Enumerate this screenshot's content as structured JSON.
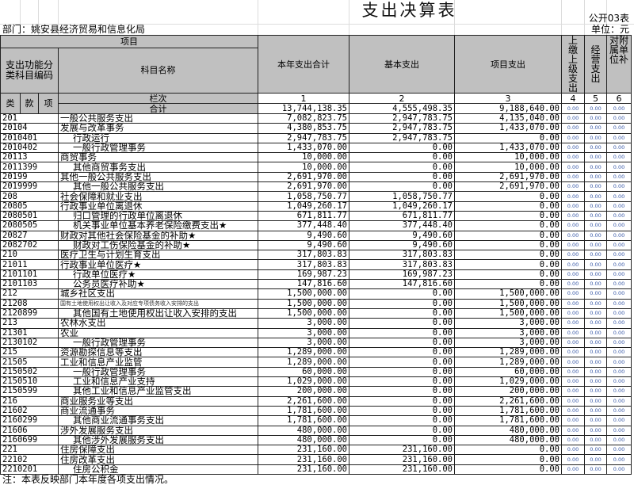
{
  "title": "支出决算表",
  "form_no": "公开03表",
  "unit": "单位：元",
  "department": "部门：姚安县经济贸易和信息化局",
  "header": {
    "item": "项目",
    "code_group": "支出功能分类科目编码",
    "name": "科目名称",
    "col1": "本年支出合计",
    "col2": "基本支出",
    "col3": "项目支出",
    "col4": "上缴上级支出",
    "col5": "经营支出",
    "col6": "对附属单位补",
    "lei": "类",
    "kuan": "款",
    "xiang": "项",
    "lanci": "栏次",
    "n1": "1",
    "n2": "2",
    "n3": "3",
    "n4": "4",
    "n5": "5",
    "n6": "6",
    "total_label": "合计",
    "total": [
      "13,744,138.35",
      "4,555,498.35",
      "9,188,640.00",
      "0.00",
      "0.00",
      "0.00"
    ]
  },
  "rows": [
    {
      "code": "201",
      "name": "一般公共服务支出",
      "v": [
        "7,082,823.75",
        "2,947,783.75",
        "4,135,040.00"
      ]
    },
    {
      "code": "20104",
      "name": "发展与改革事务",
      "v": [
        "4,380,853.75",
        "2,947,783.75",
        "1,433,070.00"
      ]
    },
    {
      "code": "2010401",
      "name": "行政运行",
      "v": [
        "2,947,783.75",
        "2,947,783.75",
        "0.00"
      ]
    },
    {
      "code": "2010402",
      "name": "一般行政管理事务",
      "v": [
        "1,433,070.00",
        "0.00",
        "1,433,070.00"
      ]
    },
    {
      "code": "20113",
      "name": "商贸事务",
      "v": [
        "10,000.00",
        "0.00",
        "10,000.00"
      ]
    },
    {
      "code": "2011399",
      "name": "其他商贸事务支出",
      "v": [
        "10,000.00",
        "0.00",
        "10,000.00"
      ]
    },
    {
      "code": "20199",
      "name": "其他一般公共服务支出",
      "v": [
        "2,691,970.00",
        "0.00",
        "2,691,970.00"
      ]
    },
    {
      "code": "2019999",
      "name": "其他一般公共服务支出",
      "v": [
        "2,691,970.00",
        "0.00",
        "2,691,970.00"
      ]
    },
    {
      "code": "208",
      "name": "社会保障和就业支出",
      "v": [
        "1,058,750.77",
        "1,058,750.77",
        "0.00"
      ]
    },
    {
      "code": "20805",
      "name": "行政事业单位离退休",
      "v": [
        "1,049,260.17",
        "1,049,260.17",
        "0.00"
      ]
    },
    {
      "code": "2080501",
      "name": "归口管理的行政单位离退休",
      "v": [
        "671,811.77",
        "671,811.77",
        "0.00"
      ]
    },
    {
      "code": "2080505",
      "name": "机关事业单位基本养老保险缴费支出★",
      "v": [
        "377,448.40",
        "377,448.40",
        "0.00"
      ]
    },
    {
      "code": "20827",
      "name": "财政对其他社会保险基金的补助★",
      "v": [
        "9,490.60",
        "9,490.60",
        "0.00"
      ]
    },
    {
      "code": "2082702",
      "name": "财政对工伤保险基金的补助★",
      "v": [
        "9,490.60",
        "9,490.60",
        "0.00"
      ]
    },
    {
      "code": "210",
      "name": "医疗卫生与计划生育支出",
      "v": [
        "317,803.83",
        "317,803.83",
        "0.00"
      ]
    },
    {
      "code": "21011",
      "name": "行政事业单位医疗★",
      "v": [
        "317,803.83",
        "317,803.83",
        "0.00"
      ]
    },
    {
      "code": "2101101",
      "name": "行政单位医疗★",
      "v": [
        "169,987.23",
        "169,987.23",
        "0.00"
      ]
    },
    {
      "code": "2101103",
      "name": "公务员医疗补助★",
      "v": [
        "147,816.60",
        "147,816.60",
        "0.00"
      ]
    },
    {
      "code": "212",
      "name": "城乡社区支出",
      "v": [
        "1,500,000.00",
        "0.00",
        "1,500,000.00"
      ]
    },
    {
      "code": "21208",
      "name": "国有土地使用权出让收入及对应专项债务收入安排的支出",
      "v": [
        "1,500,000.00",
        "0.00",
        "1,500,000.00"
      ]
    },
    {
      "code": "2120899",
      "name": "其他国有土地使用权出让收入安排的支出",
      "v": [
        "1,500,000.00",
        "0.00",
        "1,500,000.00"
      ]
    },
    {
      "code": "213",
      "name": "农林水支出",
      "v": [
        "3,000.00",
        "0.00",
        "3,000.00"
      ]
    },
    {
      "code": "21301",
      "name": "农业",
      "v": [
        "3,000.00",
        "0.00",
        "3,000.00"
      ]
    },
    {
      "code": "2130102",
      "name": "一般行政管理事务",
      "v": [
        "3,000.00",
        "0.00",
        "3,000.00"
      ]
    },
    {
      "code": "215",
      "name": "资源勘探信息等支出",
      "v": [
        "1,289,000.00",
        "0.00",
        "1,289,000.00"
      ]
    },
    {
      "code": "21505",
      "name": "工业和信息产业监管",
      "v": [
        "1,289,000.00",
        "0.00",
        "1,289,000.00"
      ]
    },
    {
      "code": "2150502",
      "name": "一般行政管理事务",
      "v": [
        "60,000.00",
        "0.00",
        "60,000.00"
      ]
    },
    {
      "code": "2150510",
      "name": "工业和信息产业支持",
      "v": [
        "1,029,000.00",
        "0.00",
        "1,029,000.00"
      ]
    },
    {
      "code": "2150599",
      "name": "其他工业和信息产业监管支出",
      "v": [
        "200,000.00",
        "0.00",
        "200,000.00"
      ]
    },
    {
      "code": "216",
      "name": "商业服务业等支出",
      "v": [
        "2,261,600.00",
        "0.00",
        "2,261,600.00"
      ]
    },
    {
      "code": "21602",
      "name": "商业流通事务",
      "v": [
        "1,781,600.00",
        "0.00",
        "1,781,600.00"
      ]
    },
    {
      "code": "2160299",
      "name": "其他商业流通事务支出",
      "v": [
        "1,781,600.00",
        "0.00",
        "1,781,600.00"
      ]
    },
    {
      "code": "21606",
      "name": "涉外发展服务支出",
      "v": [
        "480,000.00",
        "0.00",
        "480,000.00"
      ]
    },
    {
      "code": "2160699",
      "name": "其他涉外发展服务支出",
      "v": [
        "480,000.00",
        "0.00",
        "480,000.00"
      ]
    },
    {
      "code": "221",
      "name": "住房保障支出",
      "v": [
        "231,160.00",
        "231,160.00",
        "0.00"
      ]
    },
    {
      "code": "22102",
      "name": "住房改革支出",
      "v": [
        "231,160.00",
        "231,160.00",
        "0.00"
      ]
    },
    {
      "code": "2210201",
      "name": "住房公积金",
      "v": [
        "231,160.00",
        "231,160.00",
        "0.00"
      ]
    }
  ],
  "zero": "0.00",
  "note": "注：本表反映部门本年度各项支出情况。"
}
